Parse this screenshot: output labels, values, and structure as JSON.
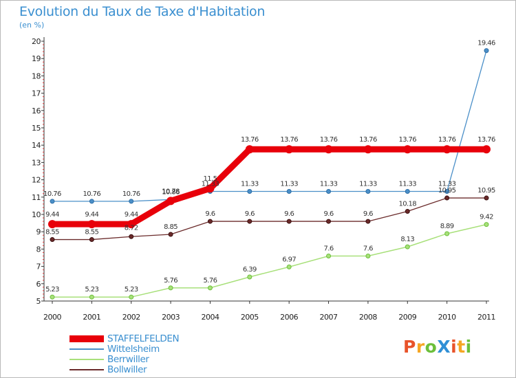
{
  "header": {
    "title": "Evolution du Taux de Taxe d'Habitation",
    "subtitle": "(en %)"
  },
  "logo": {
    "text": "ProXiti",
    "colors": [
      "#e8532a",
      "#f5a623",
      "#6cbf3b",
      "#2f8fd6",
      "#e8532a",
      "#f5a623",
      "#6cbf3b"
    ]
  },
  "chart_data": {
    "type": "line",
    "title": "Evolution du Taux de Taxe d'Habitation",
    "subtitle": "(en %)",
    "xlabel": "",
    "ylabel": "",
    "x": [
      "2000",
      "2001",
      "2002",
      "2003",
      "2004",
      "2005",
      "2006",
      "2007",
      "2008",
      "2009",
      "2010",
      "2011"
    ],
    "ylim": [
      5,
      20
    ],
    "yticks": [
      "5",
      "6",
      "7",
      "8",
      "9",
      "10",
      "11",
      "12",
      "13",
      "14",
      "15",
      "16",
      "17",
      "18",
      "19",
      "20"
    ],
    "grid": false,
    "legend_position": "bottom-left",
    "series": [
      {
        "name": "STAFFELFELDEN",
        "color": "#e8000a",
        "width": 9,
        "values": [
          9.44,
          9.44,
          9.44,
          10.78,
          11.5,
          13.76,
          13.76,
          13.76,
          13.76,
          13.76,
          13.76,
          13.76
        ],
        "labels": [
          "9.44",
          "9.44",
          "9.44",
          "10.78",
          "11.5",
          "13.76",
          "13.76",
          "13.76",
          "13.76",
          "13.76",
          "13.76",
          "13.76"
        ]
      },
      {
        "name": "Wittelsheim",
        "color": "#4a8fc8",
        "width": 1.3,
        "values": [
          10.76,
          10.76,
          10.76,
          10.86,
          11.33,
          11.33,
          11.33,
          11.33,
          11.33,
          11.33,
          11.33,
          19.46
        ],
        "labels": [
          "10.76",
          "10.76",
          "10.76",
          "10.86",
          "11.33",
          "11.33",
          "11.33",
          "11.33",
          "11.33",
          "11.33",
          "11.33",
          "19.46"
        ]
      },
      {
        "name": "Berrwiller",
        "color": "#a8e07a",
        "width": 1.5,
        "values": [
          5.23,
          5.23,
          5.23,
          5.76,
          5.76,
          6.39,
          6.97,
          7.6,
          7.6,
          8.13,
          8.89,
          9.42
        ],
        "labels": [
          "5.23",
          "5.23",
          "5.23",
          "5.76",
          "5.76",
          "6.39",
          "6.97",
          "7.6",
          "7.6",
          "8.13",
          "8.89",
          "9.42"
        ]
      },
      {
        "name": "Bollwiller",
        "color": "#6a2a2a",
        "width": 1.3,
        "values": [
          8.55,
          8.55,
          8.72,
          8.85,
          9.6,
          9.6,
          9.6,
          9.6,
          9.6,
          10.18,
          10.95,
          10.95
        ],
        "labels": [
          "8.55",
          "8.55",
          "8.72",
          "8.85",
          "9.6",
          "9.6",
          "9.6",
          "9.6",
          "9.6",
          "10.18",
          "10.95",
          "10.95"
        ]
      }
    ]
  }
}
